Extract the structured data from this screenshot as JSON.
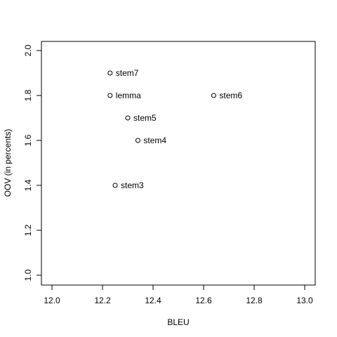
{
  "chart_data": {
    "type": "scatter",
    "title": "",
    "xlabel": "BLEU",
    "ylabel": "OOV (in percents)",
    "xlim": [
      12.0,
      13.0
    ],
    "ylim": [
      1.0,
      2.0
    ],
    "xticks": [
      "12.0",
      "12.2",
      "12.4",
      "12.6",
      "12.8",
      "13.0"
    ],
    "yticks": [
      "1.0",
      "1.2",
      "1.4",
      "1.6",
      "1.8",
      "2.0"
    ],
    "grid": false,
    "marker": "open-circle",
    "points": [
      {
        "label": "stem7",
        "x": 12.23,
        "y": 1.9
      },
      {
        "label": "lemma",
        "x": 12.23,
        "y": 1.8
      },
      {
        "label": "stem6",
        "x": 12.64,
        "y": 1.8
      },
      {
        "label": "stem5",
        "x": 12.3,
        "y": 1.7
      },
      {
        "label": "stem4",
        "x": 12.34,
        "y": 1.6
      },
      {
        "label": "stem3",
        "x": 12.25,
        "y": 1.4
      }
    ]
  }
}
